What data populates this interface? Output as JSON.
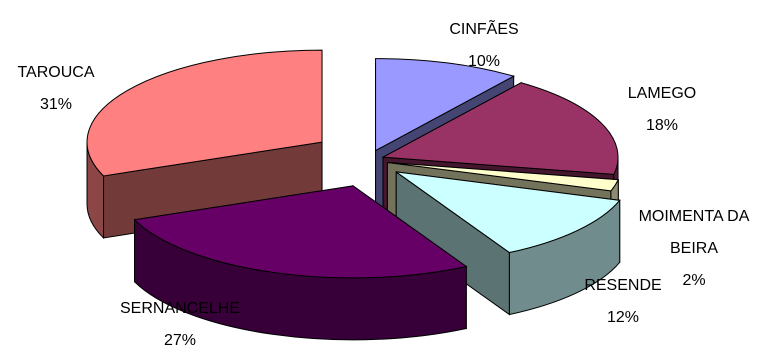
{
  "chart_data": {
    "type": "pie",
    "title": "",
    "exploded": true,
    "three_d": true,
    "legend": "none",
    "slices": [
      {
        "label": "CINFÃES",
        "value": 10,
        "value_label": "10%",
        "color": "#9999ff"
      },
      {
        "label": "LAMEGO",
        "value": 18,
        "value_label": "18%",
        "color": "#993366"
      },
      {
        "label": "MOIMENTA DA BEIRA",
        "value": 2,
        "value_label": "2%",
        "color": "#ffffcc"
      },
      {
        "label": "RESENDE",
        "value": 12,
        "value_label": "12%",
        "color": "#ccffff"
      },
      {
        "label": "SERNANCELHE",
        "value": 27,
        "value_label": "27%",
        "color": "#660066"
      },
      {
        "label": "TAROUCA",
        "value": 31,
        "value_label": "31%",
        "color": "#ff8080"
      }
    ]
  }
}
